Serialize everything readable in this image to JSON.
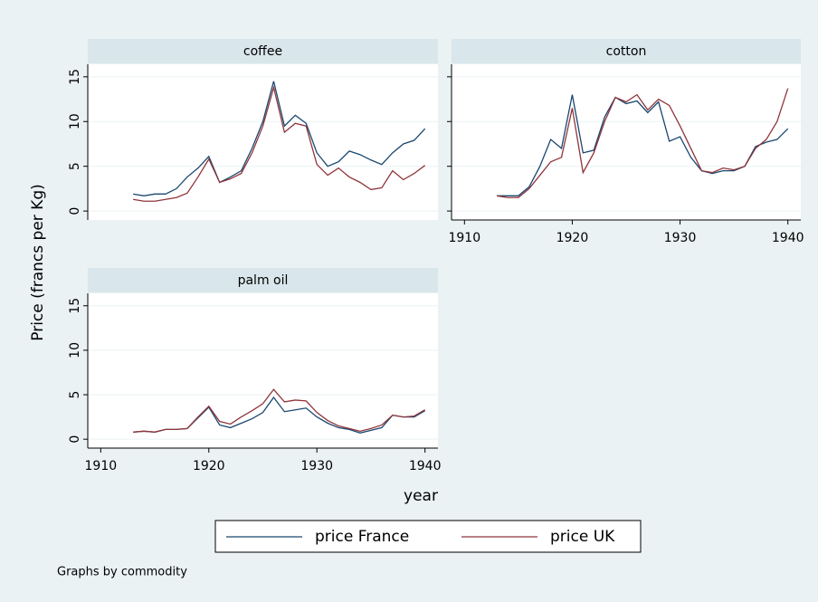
{
  "chart_data": [
    {
      "type": "line",
      "title": "coffee",
      "x": [
        1913,
        1914,
        1915,
        1916,
        1917,
        1918,
        1919,
        1920,
        1921,
        1922,
        1923,
        1924,
        1925,
        1926,
        1927,
        1928,
        1929,
        1930,
        1931,
        1932,
        1933,
        1934,
        1935,
        1936,
        1937,
        1938,
        1939,
        1940
      ],
      "series": [
        {
          "name": "price France",
          "color": "#1a476f",
          "values": [
            1.9,
            1.7,
            1.9,
            1.9,
            2.5,
            3.8,
            4.8,
            6.1,
            3.2,
            3.8,
            4.5,
            7,
            10,
            14.5,
            9.5,
            10.7,
            9.8,
            6.5,
            5,
            5.5,
            6.7,
            6.3,
            5.7,
            5.2,
            6.5,
            7.5,
            7.9,
            9.2
          ]
        },
        {
          "name": "price UK",
          "color": "#90353b",
          "values": [
            1.3,
            1.1,
            1.1,
            1.3,
            1.5,
            2,
            3.8,
            5.8,
            3.2,
            3.6,
            4.2,
            6.5,
            9.5,
            13.8,
            8.8,
            9.8,
            9.5,
            5.2,
            4,
            4.8,
            3.8,
            3.2,
            2.4,
            2.6,
            4.5,
            3.5,
            4.2,
            5.1
          ]
        }
      ],
      "xlim": [
        1908.8,
        1941.2
      ],
      "xticks": [
        1910,
        1920,
        1930,
        1940
      ],
      "ylim": [
        -1,
        16.4
      ],
      "yticks": [
        0,
        5,
        10,
        15
      ],
      "grid": true
    },
    {
      "type": "line",
      "title": "cotton",
      "x": [
        1913,
        1914,
        1915,
        1916,
        1917,
        1918,
        1919,
        1920,
        1921,
        1922,
        1923,
        1924,
        1925,
        1926,
        1927,
        1928,
        1929,
        1930,
        1931,
        1932,
        1933,
        1934,
        1935,
        1936,
        1937,
        1938,
        1939,
        1940
      ],
      "series": [
        {
          "name": "price France",
          "color": "#1a476f",
          "values": [
            1.7,
            1.7,
            1.7,
            2.7,
            5,
            8,
            7,
            13,
            6.5,
            6.8,
            10.5,
            12.7,
            12,
            12.3,
            11,
            12.2,
            7.8,
            8.3,
            6,
            4.5,
            4.2,
            4.5,
            4.5,
            5,
            7.2,
            7.7,
            8,
            9.2
          ]
        },
        {
          "name": "price UK",
          "color": "#90353b",
          "values": [
            1.7,
            1.5,
            1.5,
            2.5,
            4,
            5.5,
            6,
            11.5,
            4.3,
            6.5,
            10,
            12.7,
            12.2,
            13,
            11.3,
            12.5,
            11.8,
            9.5,
            7,
            4.5,
            4.3,
            4.8,
            4.6,
            5,
            7,
            8,
            10,
            13.7
          ]
        }
      ],
      "xlim": [
        1908.8,
        1941.2
      ],
      "xticks": [
        1910,
        1920,
        1930,
        1940
      ],
      "ylim": [
        -1,
        16.4
      ],
      "yticks": [
        0,
        5,
        10,
        15
      ],
      "grid": true
    },
    {
      "type": "line",
      "title": "palm oil",
      "x": [
        1913,
        1914,
        1915,
        1916,
        1917,
        1918,
        1919,
        1920,
        1921,
        1922,
        1923,
        1924,
        1925,
        1926,
        1927,
        1928,
        1929,
        1930,
        1931,
        1932,
        1933,
        1934,
        1935,
        1936,
        1937,
        1938,
        1939,
        1940
      ],
      "series": [
        {
          "name": "price France",
          "color": "#1a476f",
          "values": [
            0.8,
            0.9,
            0.8,
            1.1,
            1.1,
            1.2,
            2.4,
            3.6,
            1.6,
            1.3,
            1.8,
            2.3,
            3,
            4.7,
            3.1,
            3.3,
            3.5,
            2.5,
            1.8,
            1.3,
            1.1,
            0.7,
            1.0,
            1.3,
            2.7,
            2.5,
            2.5,
            3.2
          ]
        },
        {
          "name": "price UK",
          "color": "#90353b",
          "values": [
            0.8,
            0.9,
            0.8,
            1.1,
            1.1,
            1.2,
            2.5,
            3.7,
            2.0,
            1.7,
            2.5,
            3.2,
            4,
            5.6,
            4.2,
            4.4,
            4.3,
            3.0,
            2.1,
            1.5,
            1.2,
            0.9,
            1.2,
            1.6,
            2.7,
            2.5,
            2.6,
            3.3
          ]
        }
      ],
      "xlim": [
        1908.8,
        1941.2
      ],
      "xticks": [
        1910,
        1920,
        1930,
        1940
      ],
      "ylim": [
        -1,
        16.4
      ],
      "yticks": [
        0,
        5,
        10,
        15
      ],
      "grid": true
    }
  ],
  "ytitle": "Price (francs per Kg)",
  "xtitle": "year",
  "note": "Graphs by commodity"
}
